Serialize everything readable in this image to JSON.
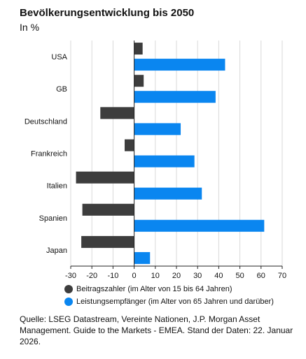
{
  "chart_data": {
    "type": "bar",
    "orientation": "horizontal",
    "title": "Bevölkerungsentwicklung bis 2050",
    "subtitle": "In %",
    "categories": [
      "USA",
      "GB",
      "Deutschland",
      "Frankreich",
      "Italien",
      "Spanien",
      "Japan"
    ],
    "series": [
      {
        "name": "Beitragszahler (im Alter von 15 bis 64 Jahren)",
        "color": "#3d3d3d",
        "values": [
          4,
          4.5,
          -16,
          -4.5,
          -27.5,
          -24.5,
          -25
        ]
      },
      {
        "name": "Leistungsempfänger (im Alter von 65 Jahren und darüber)",
        "color": "#0a86f0",
        "values": [
          43,
          38.5,
          22,
          28.5,
          32,
          61.5,
          7.5
        ]
      }
    ],
    "xlim": [
      -30,
      70
    ],
    "xticks": [
      -30,
      -20,
      -10,
      0,
      10,
      20,
      30,
      40,
      50,
      60,
      70
    ],
    "grid": "vertical",
    "legend_position": "bottom"
  },
  "source": "Quelle: LSEG Datastream, Vereinte Nationen, J.P. Morgan Asset Management. Guide to the Markets - EMEA. Stand der Daten: 22. Januar 2026."
}
